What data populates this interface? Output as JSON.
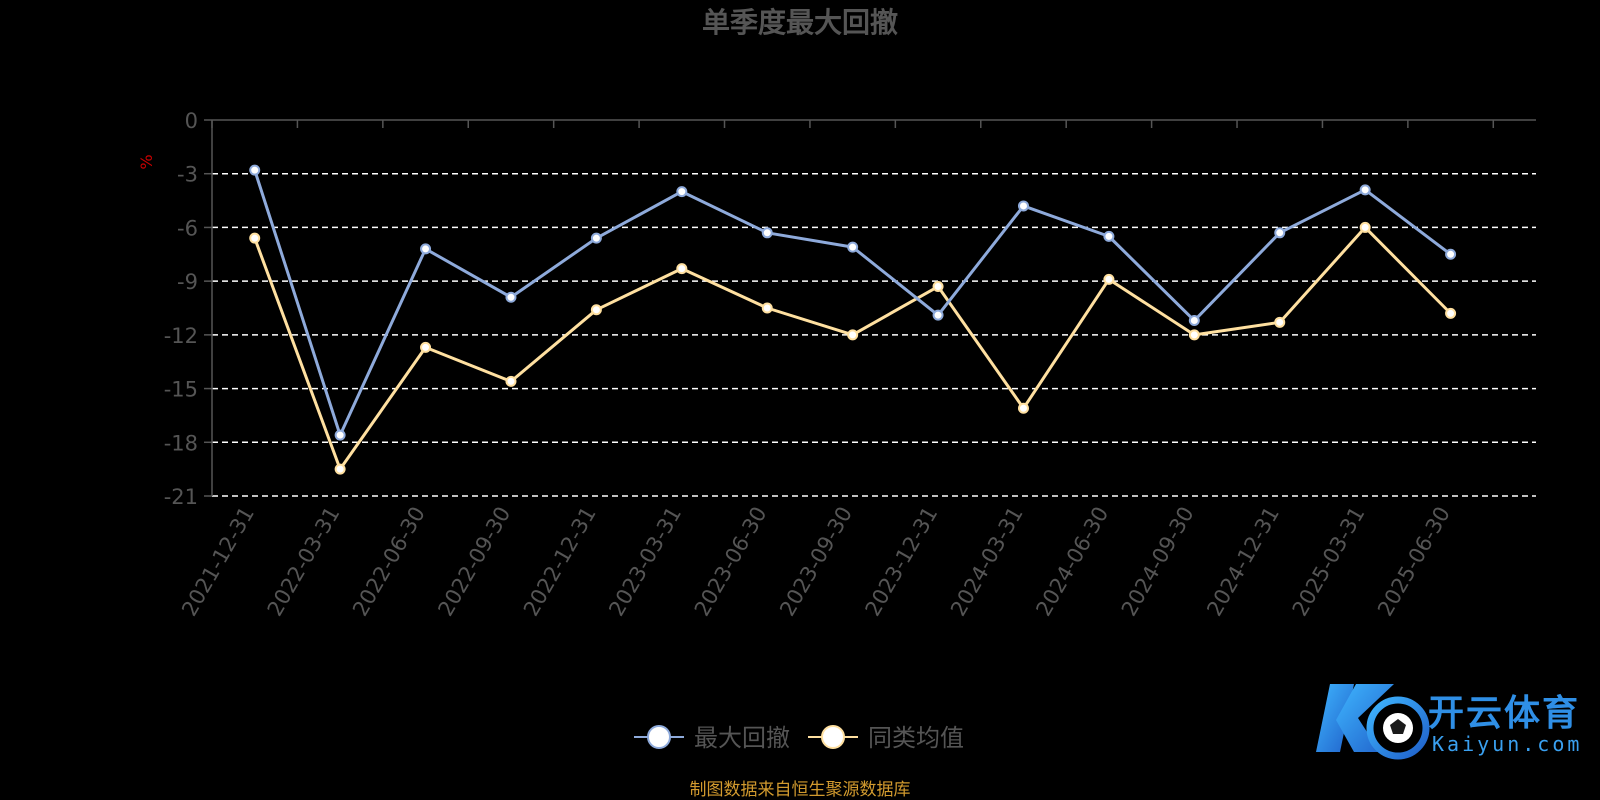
{
  "colors": {
    "background": "#000000",
    "title": "#555555",
    "axis": "#555555",
    "tick_label": "#555555",
    "grid": "#ffffff",
    "unit": "#cc0000",
    "series_max_drawdown": "#8eaadb",
    "series_peer_avg": "#ffe0a0",
    "source": "#d29a2e"
  },
  "chart_data": {
    "type": "line",
    "title": "单季度最大回撤",
    "ylabel": "%",
    "ylim": [
      -21,
      0
    ],
    "y_ticks": [
      0,
      -3,
      -6,
      -9,
      -12,
      -15,
      -18,
      -21
    ],
    "grid": "dashed-horizontal",
    "legend_placement": "bottom-center",
    "categories": [
      "2021-12-31",
      "2022-03-31",
      "2022-06-30",
      "2022-09-30",
      "2022-12-31",
      "2023-03-31",
      "2023-06-30",
      "2023-09-30",
      "2023-12-31",
      "2024-03-31",
      "2024-06-30",
      "2024-09-30",
      "2024-12-31",
      "2025-03-31",
      "2025-06-30"
    ],
    "series": [
      {
        "name": "最大回撤",
        "color": "#8eaadb",
        "values": [
          -2.8,
          -17.6,
          -7.2,
          -9.9,
          -6.6,
          -4.0,
          -6.3,
          -7.1,
          -10.9,
          -4.8,
          -6.5,
          -11.2,
          -6.3,
          -3.9,
          -7.5
        ]
      },
      {
        "name": "同类均值",
        "color": "#ffe0a0",
        "values": [
          -6.6,
          -19.5,
          -12.7,
          -14.6,
          -10.6,
          -8.3,
          -10.5,
          -12.0,
          -9.3,
          -16.1,
          -8.9,
          -12.0,
          -11.3,
          -6.0,
          -10.8
        ]
      }
    ]
  },
  "source_note": "制图数据来自恒生聚源数据库",
  "watermark": {
    "text": "开云体育",
    "sub": "Kaiyun.com"
  }
}
